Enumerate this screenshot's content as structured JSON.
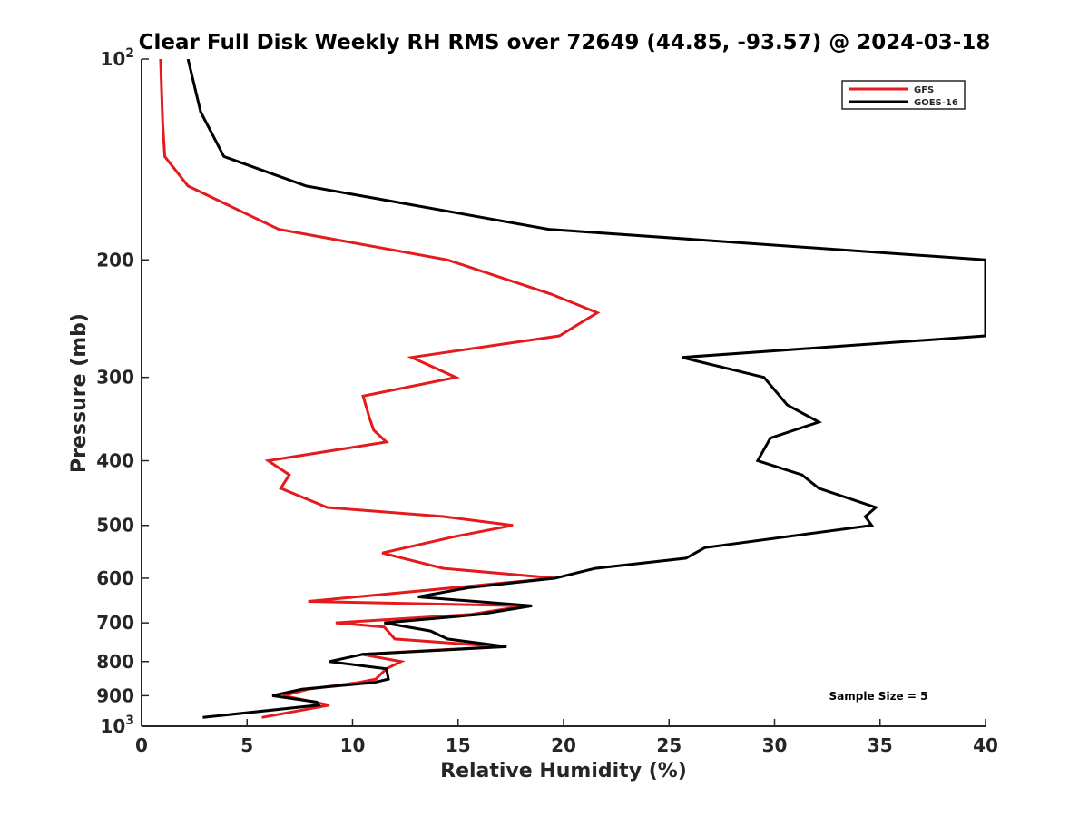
{
  "chart_data": {
    "type": "line",
    "title": "Clear Full Disk Weekly RH RMS over 72649 (44.85, -93.57) @ 2024-03-18",
    "xlabel": "Relative Humidity (%)",
    "ylabel": "Pressure (mb)",
    "xlim": [
      0,
      40
    ],
    "ylim": [
      100,
      1000
    ],
    "y_scale": "log",
    "y_reversed": true,
    "x_ticks": [
      0,
      5,
      10,
      15,
      20,
      25,
      30,
      35,
      40
    ],
    "x_tick_labels": [
      "0",
      "5",
      "10",
      "15",
      "20",
      "25",
      "30",
      "35",
      "40"
    ],
    "y_ticks": [
      100,
      200,
      300,
      400,
      500,
      600,
      700,
      800,
      900,
      1000
    ],
    "y_tick_labels": [
      {
        "base": "10",
        "exp": "2"
      },
      {
        "base": "200",
        "exp": ""
      },
      {
        "base": "300",
        "exp": ""
      },
      {
        "base": "400",
        "exp": ""
      },
      {
        "base": "500",
        "exp": ""
      },
      {
        "base": "600",
        "exp": ""
      },
      {
        "base": "700",
        "exp": ""
      },
      {
        "base": "800",
        "exp": ""
      },
      {
        "base": "900",
        "exp": ""
      },
      {
        "base": "10",
        "exp": "3"
      }
    ],
    "grid": false,
    "legend_position": "top-right",
    "annotation": "Sample Size = 5",
    "series": [
      {
        "name": "GFS",
        "color": "#e41a1c",
        "points": [
          [
            0.9,
            100
          ],
          [
            1.0,
            125
          ],
          [
            1.1,
            140
          ],
          [
            2.2,
            155
          ],
          [
            6.5,
            180
          ],
          [
            14.5,
            200
          ],
          [
            19.4,
            225
          ],
          [
            21.6,
            240
          ],
          [
            19.8,
            260
          ],
          [
            12.8,
            280
          ],
          [
            14.9,
            300
          ],
          [
            10.5,
            320
          ],
          [
            10.8,
            345
          ],
          [
            11.0,
            360
          ],
          [
            11.6,
            375
          ],
          [
            6.0,
            400
          ],
          [
            7.0,
            420
          ],
          [
            6.6,
            440
          ],
          [
            8.8,
            470
          ],
          [
            14.3,
            485
          ],
          [
            17.6,
            500
          ],
          [
            14.8,
            520
          ],
          [
            11.4,
            550
          ],
          [
            14.3,
            580
          ],
          [
            19.6,
            600
          ],
          [
            7.9,
            650
          ],
          [
            18.2,
            660
          ],
          [
            15.6,
            680
          ],
          [
            9.2,
            700
          ],
          [
            11.5,
            710
          ],
          [
            12.0,
            740
          ],
          [
            17.0,
            760
          ],
          [
            10.4,
            780
          ],
          [
            12.3,
            800
          ],
          [
            11.6,
            820
          ],
          [
            11.1,
            850
          ],
          [
            10.3,
            860
          ],
          [
            7.9,
            880
          ],
          [
            6.7,
            900
          ],
          [
            8.9,
            930
          ],
          [
            5.7,
            970
          ]
        ]
      },
      {
        "name": "GOES-16",
        "color": "#000000",
        "points": [
          [
            2.2,
            100
          ],
          [
            2.8,
            120
          ],
          [
            3.9,
            140
          ],
          [
            7.8,
            155
          ],
          [
            19.3,
            180
          ],
          [
            40.0,
            200
          ],
          [
            40.0,
            260
          ],
          [
            25.6,
            280
          ],
          [
            29.5,
            300
          ],
          [
            30.6,
            330
          ],
          [
            32.1,
            350
          ],
          [
            29.8,
            370
          ],
          [
            29.2,
            400
          ],
          [
            31.3,
            420
          ],
          [
            32.1,
            440
          ],
          [
            34.8,
            470
          ],
          [
            34.3,
            485
          ],
          [
            34.6,
            500
          ],
          [
            26.7,
            540
          ],
          [
            25.8,
            560
          ],
          [
            21.5,
            580
          ],
          [
            19.6,
            600
          ],
          [
            15.5,
            620
          ],
          [
            13.1,
            640
          ],
          [
            18.5,
            660
          ],
          [
            16.0,
            680
          ],
          [
            11.5,
            700
          ],
          [
            13.7,
            720
          ],
          [
            14.5,
            740
          ],
          [
            17.3,
            760
          ],
          [
            10.5,
            780
          ],
          [
            8.9,
            800
          ],
          [
            11.6,
            820
          ],
          [
            11.7,
            850
          ],
          [
            11.0,
            860
          ],
          [
            7.6,
            880
          ],
          [
            6.2,
            900
          ],
          [
            8.3,
            920
          ],
          [
            8.4,
            930
          ],
          [
            2.9,
            970
          ]
        ]
      }
    ]
  }
}
